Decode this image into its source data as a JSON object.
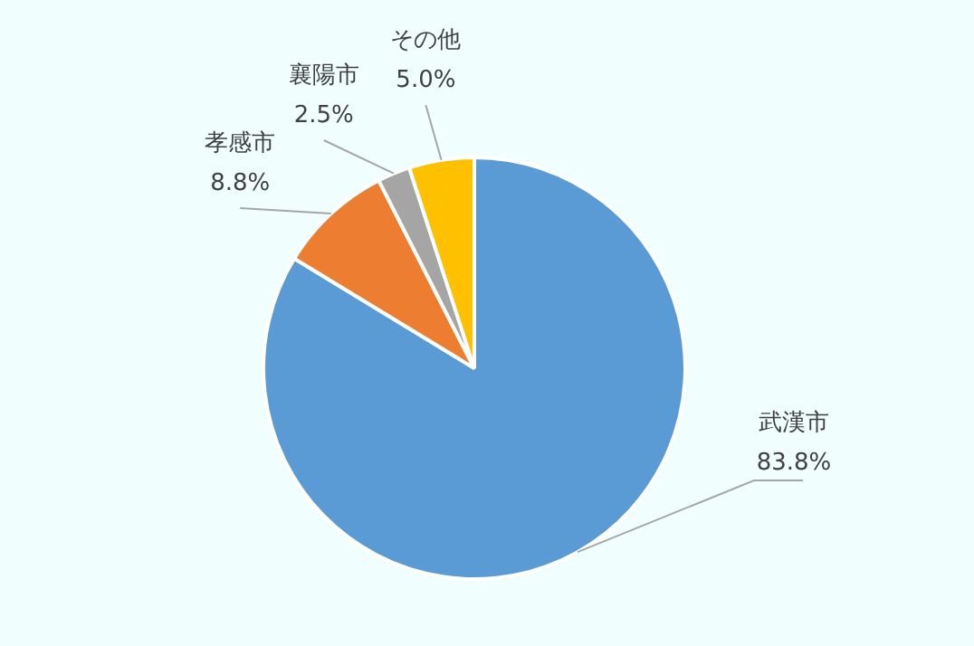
{
  "chart_data": {
    "type": "pie",
    "categories": [
      "武漢市",
      "孝感市",
      "襄陽市",
      "その他"
    ],
    "values": [
      83.8,
      8.8,
      2.5,
      5.0
    ],
    "value_labels": [
      "83.8%",
      "8.8%",
      "2.5%",
      "5.0%"
    ],
    "colors": [
      "#5b9bd5",
      "#ed7d31",
      "#a5a5a5",
      "#ffc000"
    ],
    "legend": false
  }
}
